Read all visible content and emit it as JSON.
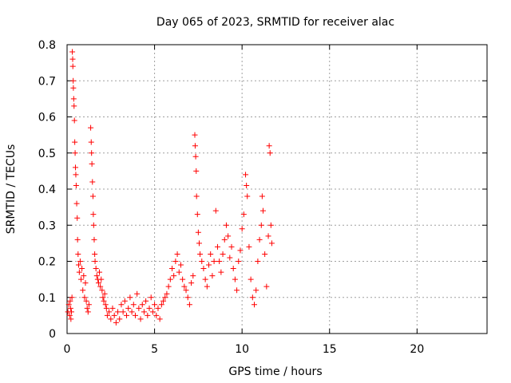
{
  "chart_data": {
    "type": "scatter",
    "title": "Day 065 of 2023, SRMTID for receiver alac",
    "xlabel": "GPS time / hours",
    "ylabel": "SRMTID / TECUs",
    "xlim": [
      0,
      24
    ],
    "ylim": [
      0,
      0.8
    ],
    "xticks": [
      0,
      5,
      10,
      15,
      20
    ],
    "yticks": [
      0,
      0.1,
      0.2,
      0.3,
      0.4,
      0.5,
      0.6,
      0.7,
      0.8
    ],
    "xtick_labels": [
      "0",
      "5",
      "10",
      "15",
      "20"
    ],
    "ytick_labels": [
      "0",
      "0.1",
      "0.2",
      "0.3",
      "0.4",
      "0.5",
      "0.6",
      "0.7",
      "0.8"
    ],
    "grid": true,
    "marker": "+",
    "color": "#ff0000",
    "series": [
      {
        "name": "SRMTID",
        "points": [
          [
            0.05,
            0.06
          ],
          [
            0.1,
            0.08
          ],
          [
            0.15,
            0.05
          ],
          [
            0.18,
            0.09
          ],
          [
            0.2,
            0.07
          ],
          [
            0.22,
            0.04
          ],
          [
            0.25,
            0.06
          ],
          [
            0.28,
            0.1
          ],
          [
            0.3,
            0.78
          ],
          [
            0.32,
            0.76
          ],
          [
            0.33,
            0.74
          ],
          [
            0.35,
            0.7
          ],
          [
            0.36,
            0.68
          ],
          [
            0.38,
            0.65
          ],
          [
            0.4,
            0.63
          ],
          [
            0.42,
            0.59
          ],
          [
            0.44,
            0.53
          ],
          [
            0.46,
            0.5
          ],
          [
            0.48,
            0.46
          ],
          [
            0.5,
            0.44
          ],
          [
            0.52,
            0.41
          ],
          [
            0.55,
            0.36
          ],
          [
            0.58,
            0.32
          ],
          [
            0.6,
            0.26
          ],
          [
            0.63,
            0.22
          ],
          [
            0.66,
            0.19
          ],
          [
            0.7,
            0.17
          ],
          [
            0.75,
            0.2
          ],
          [
            0.8,
            0.15
          ],
          [
            0.85,
            0.18
          ],
          [
            0.9,
            0.12
          ],
          [
            0.95,
            0.16
          ],
          [
            1.0,
            0.1
          ],
          [
            1.05,
            0.14
          ],
          [
            1.1,
            0.09
          ],
          [
            1.15,
            0.07
          ],
          [
            1.2,
            0.06
          ],
          [
            1.25,
            0.08
          ],
          [
            1.35,
            0.57
          ],
          [
            1.38,
            0.53
          ],
          [
            1.4,
            0.5
          ],
          [
            1.42,
            0.47
          ],
          [
            1.45,
            0.42
          ],
          [
            1.48,
            0.38
          ],
          [
            1.5,
            0.33
          ],
          [
            1.52,
            0.3
          ],
          [
            1.55,
            0.26
          ],
          [
            1.58,
            0.22
          ],
          [
            1.6,
            0.2
          ],
          [
            1.65,
            0.18
          ],
          [
            1.7,
            0.16
          ],
          [
            1.75,
            0.15
          ],
          [
            1.8,
            0.14
          ],
          [
            1.85,
            0.17
          ],
          [
            1.9,
            0.13
          ],
          [
            1.95,
            0.15
          ],
          [
            2.0,
            0.12
          ],
          [
            2.05,
            0.1
          ],
          [
            2.1,
            0.09
          ],
          [
            2.15,
            0.11
          ],
          [
            2.2,
            0.08
          ],
          [
            2.25,
            0.07
          ],
          [
            2.3,
            0.05
          ],
          [
            2.4,
            0.06
          ],
          [
            2.5,
            0.04
          ],
          [
            2.6,
            0.07
          ],
          [
            2.7,
            0.05
          ],
          [
            2.8,
            0.03
          ],
          [
            2.9,
            0.06
          ],
          [
            3.0,
            0.04
          ],
          [
            3.1,
            0.08
          ],
          [
            3.2,
            0.06
          ],
          [
            3.3,
            0.09
          ],
          [
            3.4,
            0.05
          ],
          [
            3.5,
            0.07
          ],
          [
            3.6,
            0.1
          ],
          [
            3.7,
            0.06
          ],
          [
            3.8,
            0.08
          ],
          [
            3.9,
            0.05
          ],
          [
            4.0,
            0.11
          ],
          [
            4.1,
            0.07
          ],
          [
            4.2,
            0.04
          ],
          [
            4.3,
            0.08
          ],
          [
            4.4,
            0.06
          ],
          [
            4.5,
            0.09
          ],
          [
            4.6,
            0.05
          ],
          [
            4.7,
            0.07
          ],
          [
            4.8,
            0.1
          ],
          [
            4.9,
            0.06
          ],
          [
            5.0,
            0.08
          ],
          [
            5.1,
            0.05
          ],
          [
            5.2,
            0.07
          ],
          [
            5.3,
            0.04
          ],
          [
            5.4,
            0.08
          ],
          [
            5.5,
            0.09
          ],
          [
            5.6,
            0.1
          ],
          [
            5.7,
            0.11
          ],
          [
            5.8,
            0.13
          ],
          [
            5.9,
            0.15
          ],
          [
            6.0,
            0.18
          ],
          [
            6.1,
            0.16
          ],
          [
            6.2,
            0.2
          ],
          [
            6.3,
            0.22
          ],
          [
            6.4,
            0.17
          ],
          [
            6.5,
            0.19
          ],
          [
            6.6,
            0.15
          ],
          [
            6.7,
            0.13
          ],
          [
            6.8,
            0.12
          ],
          [
            6.9,
            0.1
          ],
          [
            7.0,
            0.08
          ],
          [
            7.1,
            0.14
          ],
          [
            7.2,
            0.16
          ],
          [
            7.3,
            0.55
          ],
          [
            7.32,
            0.52
          ],
          [
            7.35,
            0.49
          ],
          [
            7.38,
            0.45
          ],
          [
            7.4,
            0.38
          ],
          [
            7.45,
            0.33
          ],
          [
            7.5,
            0.28
          ],
          [
            7.55,
            0.25
          ],
          [
            7.6,
            0.22
          ],
          [
            7.7,
            0.2
          ],
          [
            7.8,
            0.18
          ],
          [
            7.9,
            0.15
          ],
          [
            8.0,
            0.13
          ],
          [
            8.1,
            0.19
          ],
          [
            8.2,
            0.22
          ],
          [
            8.3,
            0.16
          ],
          [
            8.4,
            0.2
          ],
          [
            8.5,
            0.34
          ],
          [
            8.6,
            0.24
          ],
          [
            8.7,
            0.2
          ],
          [
            8.8,
            0.17
          ],
          [
            8.9,
            0.22
          ],
          [
            9.0,
            0.26
          ],
          [
            9.1,
            0.3
          ],
          [
            9.2,
            0.27
          ],
          [
            9.3,
            0.21
          ],
          [
            9.4,
            0.24
          ],
          [
            9.5,
            0.18
          ],
          [
            9.6,
            0.15
          ],
          [
            9.7,
            0.12
          ],
          [
            9.8,
            0.2
          ],
          [
            9.9,
            0.23
          ],
          [
            10.0,
            0.29
          ],
          [
            10.1,
            0.33
          ],
          [
            10.2,
            0.44
          ],
          [
            10.25,
            0.41
          ],
          [
            10.3,
            0.38
          ],
          [
            10.4,
            0.24
          ],
          [
            10.5,
            0.15
          ],
          [
            10.6,
            0.1
          ],
          [
            10.7,
            0.08
          ],
          [
            10.8,
            0.12
          ],
          [
            10.9,
            0.2
          ],
          [
            11.0,
            0.26
          ],
          [
            11.1,
            0.3
          ],
          [
            11.15,
            0.38
          ],
          [
            11.2,
            0.34
          ],
          [
            11.3,
            0.22
          ],
          [
            11.4,
            0.13
          ],
          [
            11.5,
            0.27
          ],
          [
            11.55,
            0.52
          ],
          [
            11.6,
            0.5
          ],
          [
            11.65,
            0.3
          ],
          [
            11.7,
            0.25
          ]
        ]
      }
    ]
  }
}
